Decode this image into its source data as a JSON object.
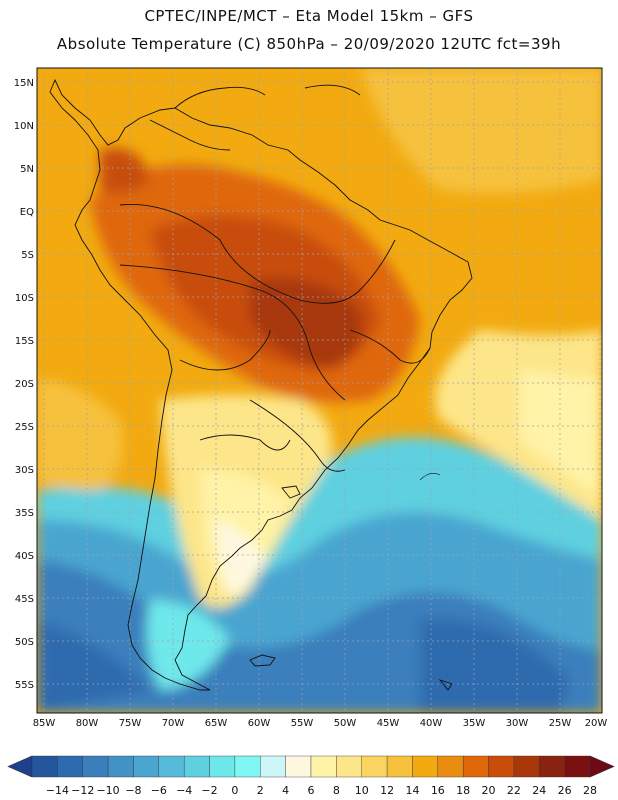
{
  "header": {
    "line1": "CPTEC/INPE/MCT  –   Eta Model 15km  –  GFS",
    "line2": "Absolute Temperature (C) 850hPa – 20/09/2020 12UTC fct=39h"
  },
  "map": {
    "lat_labels": [
      "15N",
      "10N",
      "5N",
      "EQ",
      "5S",
      "10S",
      "15S",
      "20S",
      "25S",
      "30S",
      "35S",
      "40S",
      "45S",
      "50S",
      "55S"
    ],
    "lon_labels": [
      "85W",
      "80W",
      "75W",
      "70W",
      "65W",
      "60W",
      "55W",
      "50W",
      "45W",
      "40W",
      "35W",
      "30W",
      "25W",
      "20W"
    ]
  },
  "colorbar": {
    "labels": [
      "-14",
      "-12",
      "-10",
      "-8",
      "-6",
      "-4",
      "-2",
      "0",
      "2",
      "4",
      "6",
      "8",
      "10",
      "12",
      "14",
      "16",
      "18",
      "20",
      "22",
      "24",
      "26",
      "28"
    ],
    "colors": [
      "#1f3f8f",
      "#24569e",
      "#2e6aae",
      "#3a7fbc",
      "#4292c6",
      "#4aa5d0",
      "#55bbd8",
      "#5fd0e0",
      "#6ee8ea",
      "#7ff8f4",
      "#cdf6f8",
      "#fff8e0",
      "#fff3a8",
      "#fde689",
      "#fad460",
      "#f6c13c",
      "#f2aa10",
      "#e98c10",
      "#df6808",
      "#c84d08",
      "#a8380a",
      "#8a2410",
      "#7a1010",
      "#6e0a18"
    ]
  }
}
